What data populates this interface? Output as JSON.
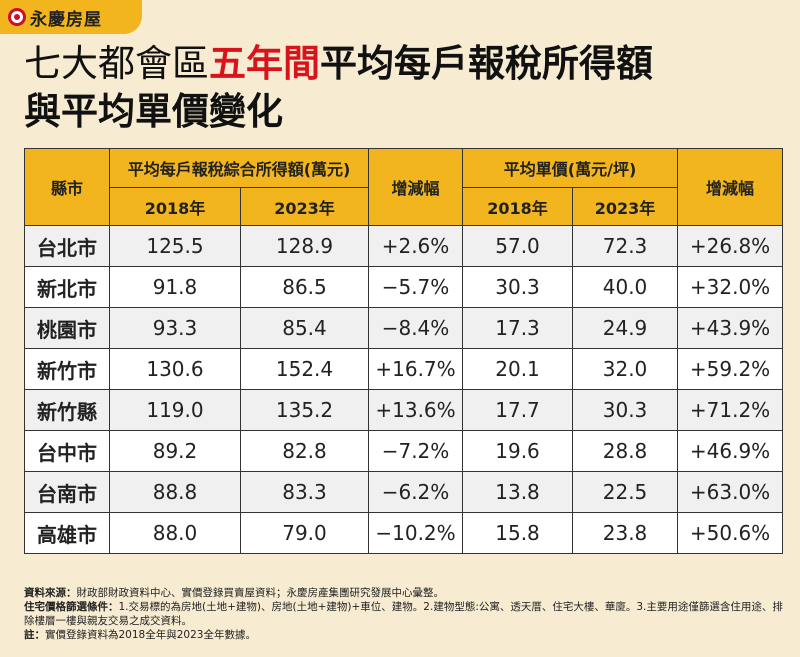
{
  "brand": {
    "name": "永慶房屋"
  },
  "title": {
    "part1": "七大都會區",
    "highlight": "五年間",
    "part2": "平均每戶報稅所得額",
    "line2": "與平均單價變化"
  },
  "table": {
    "headers": {
      "city": "縣市",
      "income": "平均每戶報稅綜合所得額(萬元)",
      "change1": "增減幅",
      "price": "平均單價(萬元/坪)",
      "change2": "增減幅",
      "y2018": "2018年",
      "y2023": "2023年"
    },
    "rows": [
      {
        "city": "台北市",
        "inc2018": "125.5",
        "inc2023": "128.9",
        "incChg": "+2.6%",
        "pr2018": "57.0",
        "pr2023": "72.3",
        "prChg": "+26.8%"
      },
      {
        "city": "新北市",
        "inc2018": "91.8",
        "inc2023": "86.5",
        "incChg": "−5.7%",
        "pr2018": "30.3",
        "pr2023": "40.0",
        "prChg": "+32.0%"
      },
      {
        "city": "桃園市",
        "inc2018": "93.3",
        "inc2023": "85.4",
        "incChg": "−8.4%",
        "pr2018": "17.3",
        "pr2023": "24.9",
        "prChg": "+43.9%"
      },
      {
        "city": "新竹市",
        "inc2018": "130.6",
        "inc2023": "152.4",
        "incChg": "+16.7%",
        "pr2018": "20.1",
        "pr2023": "32.0",
        "prChg": "+59.2%"
      },
      {
        "city": "新竹縣",
        "inc2018": "119.0",
        "inc2023": "135.2",
        "incChg": "+13.6%",
        "pr2018": "17.7",
        "pr2023": "30.3",
        "prChg": "+71.2%"
      },
      {
        "city": "台中市",
        "inc2018": "89.2",
        "inc2023": "82.8",
        "incChg": "−7.2%",
        "pr2018": "19.6",
        "pr2023": "28.8",
        "prChg": "+46.9%"
      },
      {
        "city": "台南市",
        "inc2018": "88.8",
        "inc2023": "83.3",
        "incChg": "−6.2%",
        "pr2018": "13.8",
        "pr2023": "22.5",
        "prChg": "+63.0%"
      },
      {
        "city": "高雄市",
        "inc2018": "88.0",
        "inc2023": "79.0",
        "incChg": "−10.2%",
        "pr2018": "15.8",
        "pr2023": "23.8",
        "prChg": "+50.6%"
      }
    ]
  },
  "notes": {
    "source_label": "資料來源：",
    "source_text": "財政部財政資料中心、實價登錄買賣屋資料；永慶房產集團研究發展中心彙整。",
    "filter_label": "住宅價格篩選條件：",
    "filter_text": "1.交易標的為房地(土地+建物)、房地(土地+建物)+車位、建物。2.建物型態:公寓、透天厝、住宅大樓、華廈。3.主要用途僅篩選含住用途、排除樓層一樓與親友交易之成交資料。",
    "note_label": "註：",
    "note_text": "實價登錄資料為2018全年與2023全年數據。"
  }
}
